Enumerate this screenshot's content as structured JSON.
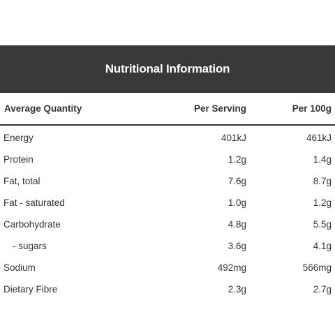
{
  "header": {
    "title": "Nutritional Information"
  },
  "table": {
    "columns": [
      "Average Quantity",
      "Per Serving",
      "Per 100g"
    ],
    "rows": [
      {
        "label": "Energy",
        "per_serving": "401kJ",
        "per_100g": "461kJ"
      },
      {
        "label": "Protein",
        "per_serving": "1.2g",
        "per_100g": "1.4g"
      },
      {
        "label": "Fat, total",
        "per_serving": "7.6g",
        "per_100g": "8.7g"
      },
      {
        "label": "Fat - saturated",
        "per_serving": "1.0g",
        "per_100g": "1.2g"
      },
      {
        "label": "Carbohydrate",
        "per_serving": "4.8g",
        "per_100g": "5.5g"
      },
      {
        "label": "- sugars",
        "per_serving": "3.6g",
        "per_100g": "4.1g"
      },
      {
        "label": "Sodium",
        "per_serving": "492mg",
        "per_100g": "566mg"
      },
      {
        "label": "Dietary Fibre",
        "per_serving": "2.3g",
        "per_100g": "2.7g"
      }
    ]
  },
  "colors": {
    "header_bg": "#3a3937",
    "header_text": "#ffffff",
    "body_text": "#333333"
  }
}
